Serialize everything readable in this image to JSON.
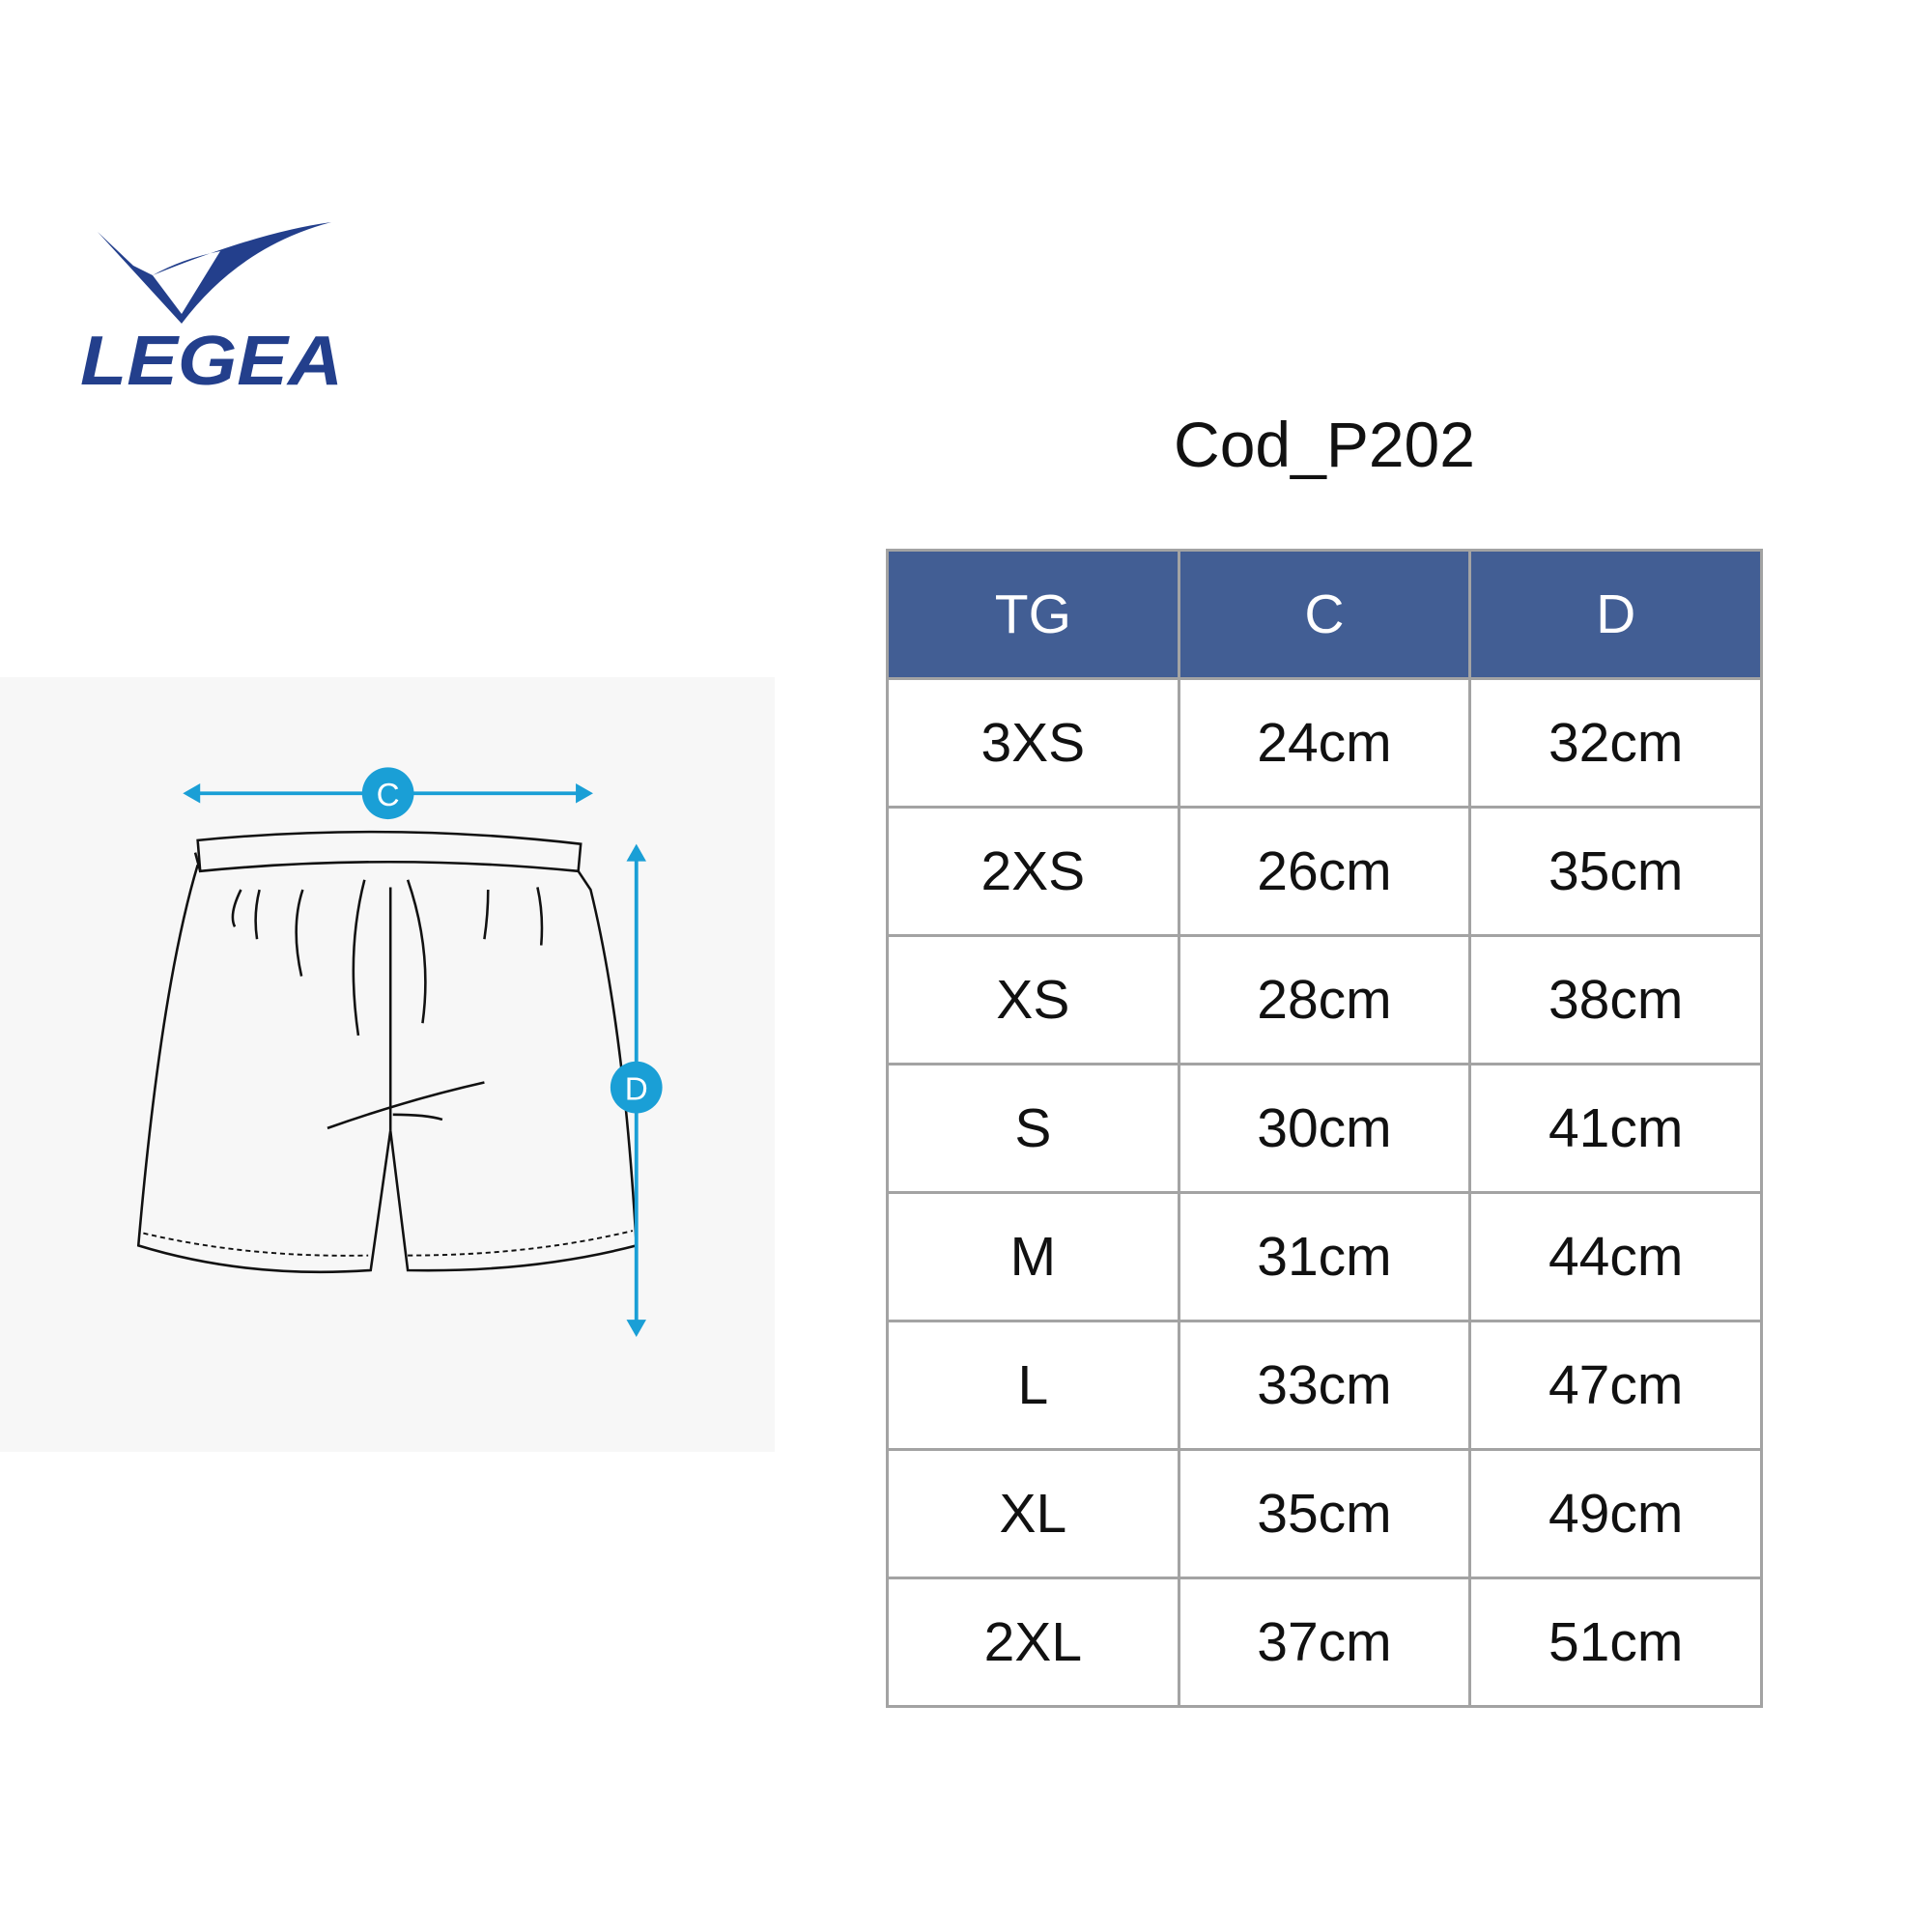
{
  "brand": {
    "name": "LEGEA",
    "color": "#233f8c"
  },
  "title": "Cod_P202",
  "diagram": {
    "labels": {
      "c": "C",
      "d": "D"
    },
    "accent_color": "#1a9fd6"
  },
  "table": {
    "header_color": "#425e94",
    "columns": [
      "TG",
      "C",
      "D"
    ],
    "rows": [
      [
        "3XS",
        "24cm",
        "32cm"
      ],
      [
        "2XS",
        "26cm",
        "35cm"
      ],
      [
        "XS",
        "28cm",
        "38cm"
      ],
      [
        "S",
        "30cm",
        "41cm"
      ],
      [
        "M",
        "31cm",
        "44cm"
      ],
      [
        "L",
        "33cm",
        "47cm"
      ],
      [
        "XL",
        "35cm",
        "49cm"
      ],
      [
        "2XL",
        "37cm",
        "51cm"
      ]
    ]
  }
}
